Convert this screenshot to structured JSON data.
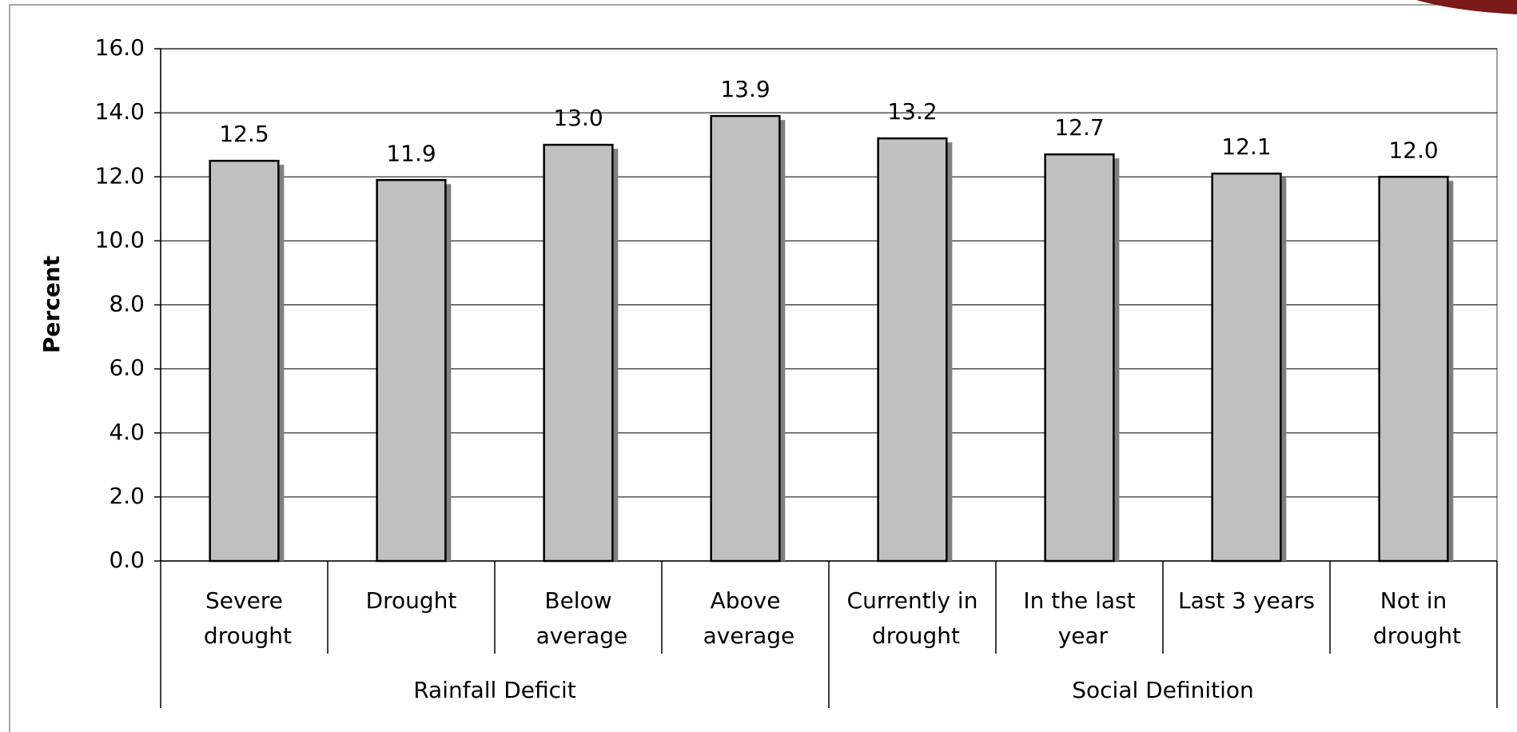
{
  "chart_data": {
    "type": "bar",
    "y_label": "Percent",
    "groups": [
      {
        "label": "Rainfall Deficit",
        "categories": [
          "Severe drought",
          "Drought",
          "Below average",
          "Above average"
        ],
        "values": [
          12.5,
          11.9,
          13.0,
          13.9
        ],
        "value_labels": [
          "12.5",
          "11.9",
          "13.0",
          "13.9"
        ]
      },
      {
        "label": "Social Definition",
        "categories": [
          "Currently in drought",
          "In the last year",
          "Last 3 years",
          "Not in drought"
        ],
        "values": [
          13.2,
          12.7,
          12.1,
          12.0
        ],
        "value_labels": [
          "13.2",
          "12.7",
          "12.1",
          "12.0"
        ]
      }
    ],
    "color": "#c0c0c0",
    "ylim": [
      0,
      16
    ],
    "yticks": [
      {
        "value": 0,
        "label": "0.0"
      },
      {
        "value": 2,
        "label": "2.0"
      },
      {
        "value": 4,
        "label": "4.0"
      },
      {
        "value": 6,
        "label": "6.0"
      },
      {
        "value": 8,
        "label": "8.0"
      },
      {
        "value": 10,
        "label": "10.0"
      },
      {
        "value": 12,
        "label": "12.0"
      },
      {
        "value": 14,
        "label": "14.0"
      },
      {
        "value": 16,
        "label": "16.0"
      }
    ],
    "grid": true
  }
}
